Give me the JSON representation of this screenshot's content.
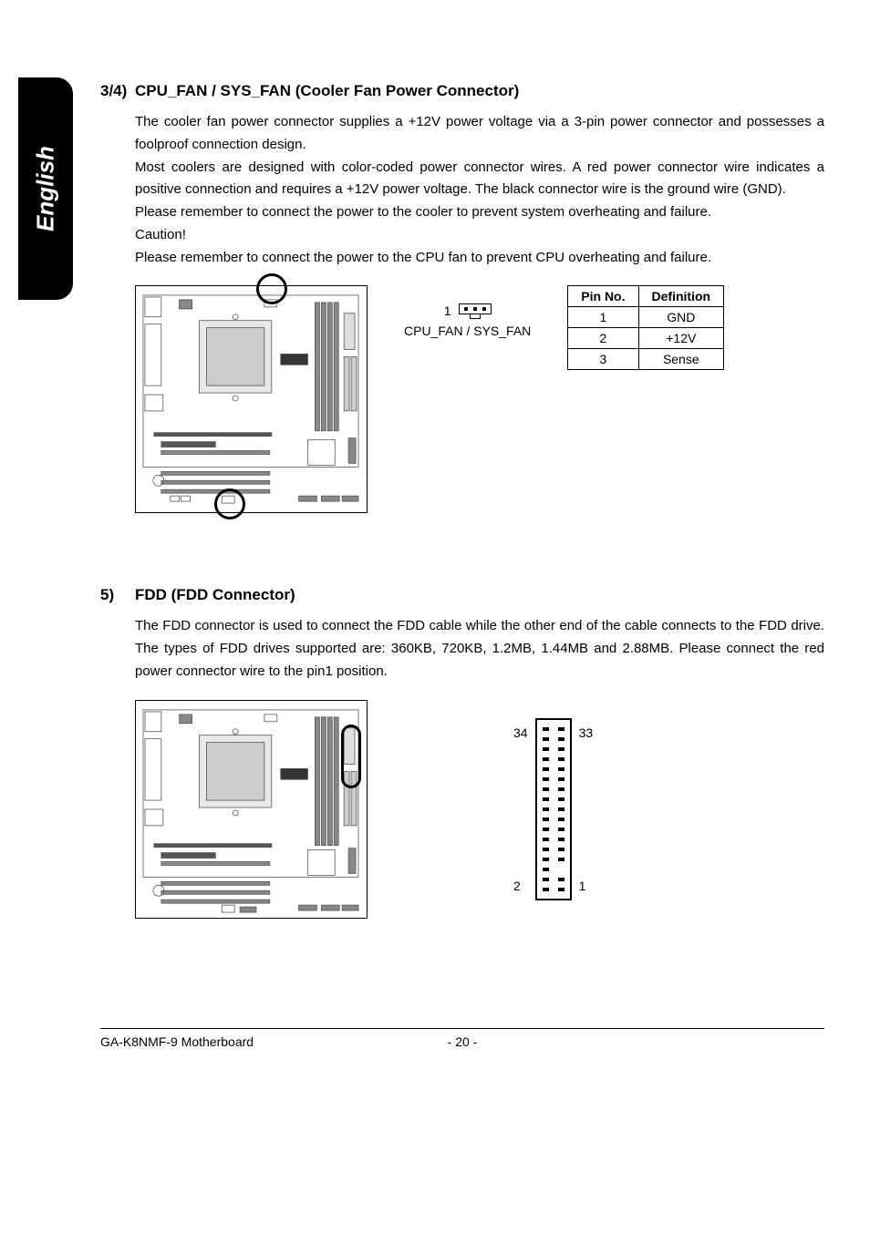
{
  "side_tab": {
    "label": "English"
  },
  "section1": {
    "num": "3/4)",
    "title": "CPU_FAN / SYS_FAN (Cooler Fan Power Connector)",
    "p1": "The cooler fan power connector supplies a +12V power voltage via a 3-pin power connector and possesses a foolproof connection design.",
    "p2": "Most coolers are designed with color-coded power connector wires. A red power connector wire indicates a positive connection and requires a +12V power voltage. The black connector wire is the ground wire (GND).",
    "p3": "Please remember to connect the power to the cooler to prevent system overheating and failure.",
    "p4": "Caution!",
    "p5": "Please remember to connect the power to the CPU fan to prevent CPU overheating and failure.",
    "fan_label_1": "1",
    "fan_caption": "CPU_FAN / SYS_FAN",
    "pin_table": {
      "headers": [
        "Pin No.",
        "Definition"
      ],
      "rows": [
        [
          "1",
          "GND"
        ],
        [
          "2",
          "+12V"
        ],
        [
          "3",
          "Sense"
        ]
      ]
    }
  },
  "section2": {
    "num": "5)",
    "title": "FDD (FDD Connector)",
    "p1": "The FDD connector is used to connect the FDD cable while the other end of the cable connects to the FDD drive. The types of FDD drives supported are: 360KB, 720KB, 1.2MB, 1.44MB and 2.88MB. Please connect the red power connector wire to the pin1 position.",
    "fdd_pins": {
      "top_left": "34",
      "top_right": "33",
      "bottom_left": "2",
      "bottom_right": "1",
      "rows": 17,
      "missing_right_row_index": 14
    }
  },
  "footer": {
    "left": "GA-K8NMF-9 Motherboard",
    "center": "- 20 -"
  },
  "mobo_style": {
    "stroke": "#555555",
    "fill": "#ffffff",
    "light_fill": "#d8d8d8"
  }
}
